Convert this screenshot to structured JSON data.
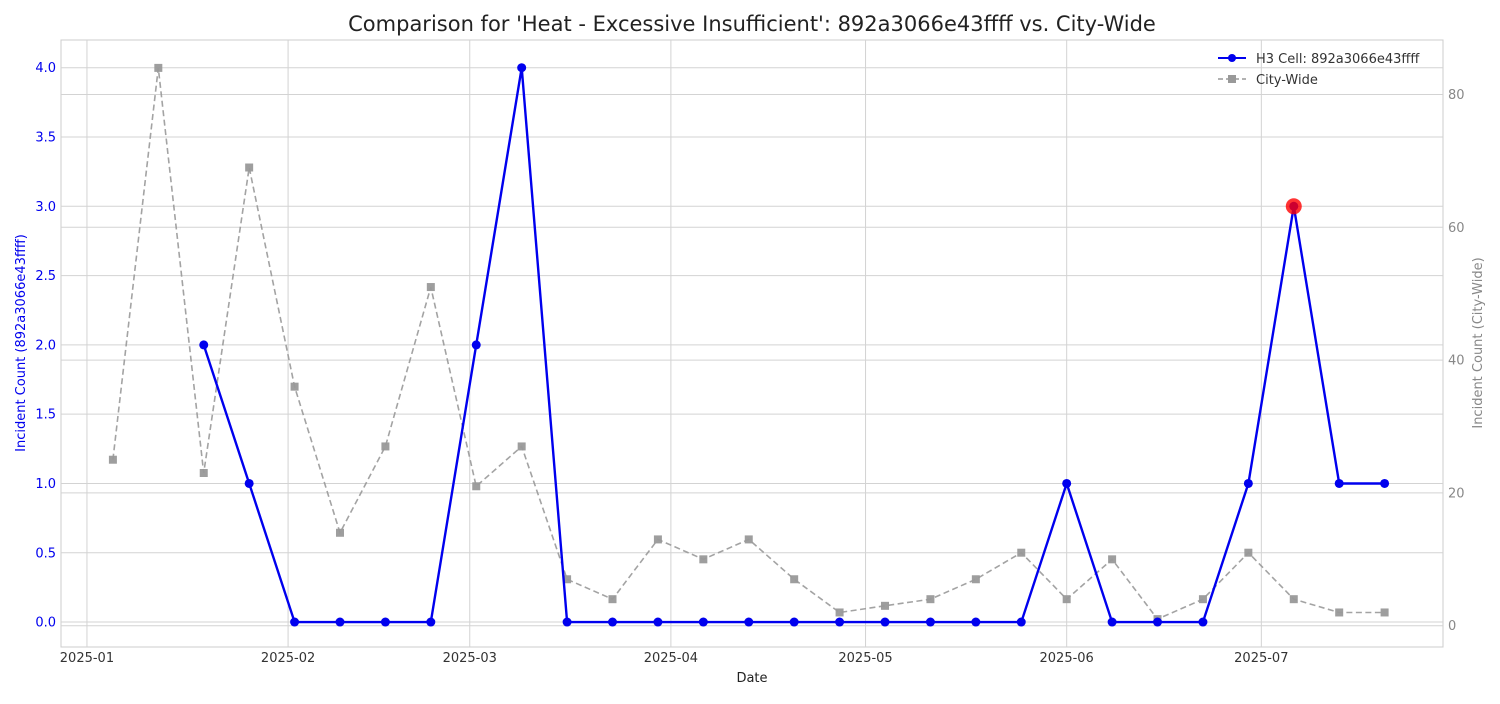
{
  "chart_data": {
    "type": "line",
    "title": "Comparison for 'Heat - Excessive  Insufficient': 892a3066e43ffff vs. City-Wide",
    "xlabel": "Date",
    "ylabel_left": "Incident Count (892a3066e43ffff)",
    "ylabel_right": "Incident Count (City-Wide)",
    "x_ticks": [
      "2025-01",
      "2025-02",
      "2025-03",
      "2025-04",
      "2025-05",
      "2025-06",
      "2025-07"
    ],
    "y_left_ticks": [
      "0.0",
      "0.5",
      "1.0",
      "1.5",
      "2.0",
      "2.5",
      "3.0",
      "3.5",
      "4.0"
    ],
    "y_right_ticks": [
      "0",
      "20",
      "40",
      "60",
      "80"
    ],
    "y_left_range": [
      -0.18,
      4.2
    ],
    "y_right_range": [
      -3.2,
      88.2
    ],
    "x_range": [
      "2024-12-28",
      "2025-07-29"
    ],
    "legend_position": "top-right",
    "grid": true,
    "colors": {
      "cell": "#0000ee",
      "city": "#999999",
      "highlight": "#ff0000"
    },
    "series": [
      {
        "name": "H3 Cell: 892a3066e43ffff",
        "axis": "left",
        "x": [
          "2025-01-19",
          "2025-01-26",
          "2025-02-02",
          "2025-02-09",
          "2025-02-16",
          "2025-02-23",
          "2025-03-02",
          "2025-03-09",
          "2025-03-16",
          "2025-03-23",
          "2025-03-30",
          "2025-04-06",
          "2025-04-13",
          "2025-04-20",
          "2025-04-27",
          "2025-05-04",
          "2025-05-11",
          "2025-05-18",
          "2025-05-25",
          "2025-06-01",
          "2025-06-08",
          "2025-06-15",
          "2025-06-22",
          "2025-06-29",
          "2025-07-06",
          "2025-07-13",
          "2025-07-20"
        ],
        "values": [
          2,
          1,
          0,
          0,
          0,
          0,
          2,
          4,
          0,
          0,
          0,
          0,
          0,
          0,
          0,
          0,
          0,
          0,
          0,
          1,
          0,
          0,
          0,
          1,
          3,
          1,
          1
        ]
      },
      {
        "name": "City-Wide",
        "axis": "right",
        "x": [
          "2025-01-05",
          "2025-01-12",
          "2025-01-19",
          "2025-01-26",
          "2025-02-02",
          "2025-02-09",
          "2025-02-16",
          "2025-02-23",
          "2025-03-02",
          "2025-03-09",
          "2025-03-16",
          "2025-03-23",
          "2025-03-30",
          "2025-04-06",
          "2025-04-13",
          "2025-04-20",
          "2025-04-27",
          "2025-05-04",
          "2025-05-11",
          "2025-05-18",
          "2025-05-25",
          "2025-06-01",
          "2025-06-08",
          "2025-06-15",
          "2025-06-22",
          "2025-06-29",
          "2025-07-06",
          "2025-07-13",
          "2025-07-20"
        ],
        "values": [
          25,
          84,
          23,
          69,
          36,
          14,
          27,
          51,
          21,
          27,
          7,
          4,
          13,
          10,
          13,
          7,
          2,
          3,
          4,
          7,
          11,
          4,
          10,
          1,
          4,
          11,
          4,
          2,
          2
        ]
      }
    ],
    "highlight_point": {
      "x": "2025-07-06",
      "value": 3
    }
  }
}
